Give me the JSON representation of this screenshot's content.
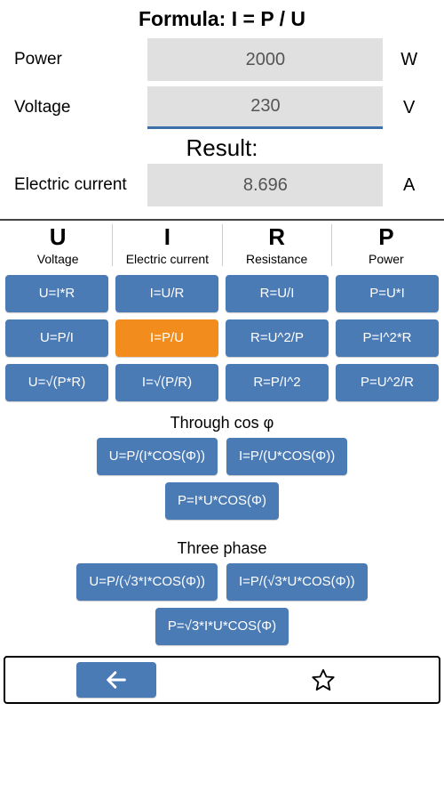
{
  "colors": {
    "button_bg": "#4b7bb5",
    "button_selected_bg": "#f28c1d",
    "button_fg": "#ffffff",
    "input_bg": "#e0e0e0",
    "input_fg": "#555555",
    "input_underline": "#3d6fa8",
    "divider": "#444444",
    "page_bg": "#ffffff",
    "text": "#000000"
  },
  "title": "Formula: I = P / U",
  "inputs": {
    "power": {
      "label": "Power",
      "value": "2000",
      "unit": "W"
    },
    "voltage": {
      "label": "Voltage",
      "value": "230",
      "unit": "V"
    }
  },
  "result_heading": "Result:",
  "result": {
    "label": "Electric current",
    "value": "8.696",
    "unit": "A"
  },
  "columns": [
    {
      "symbol": "U",
      "name": "Voltage"
    },
    {
      "symbol": "I",
      "name": "Electric current"
    },
    {
      "symbol": "R",
      "name": "Resistance"
    },
    {
      "symbol": "P",
      "name": "Power"
    }
  ],
  "grid": [
    [
      "U=I*R",
      "I=U/R",
      "R=U/I",
      "P=U*I"
    ],
    [
      "U=P/I",
      "I=P/U",
      "R=U^2/P",
      "P=I^2*R"
    ],
    [
      "U=√(P*R)",
      "I=√(P/R)",
      "R=P/I^2",
      "P=U^2/R"
    ]
  ],
  "grid_selected": {
    "row": 1,
    "col": 1
  },
  "sections": {
    "cosphi": {
      "label": "Through cos φ",
      "rows": [
        [
          "U=P/(I*COS(Φ))",
          "I=P/(U*COS(Φ))"
        ],
        [
          "P=I*U*COS(Φ)"
        ]
      ]
    },
    "three_phase": {
      "label": "Three phase",
      "rows": [
        [
          "U=P/(√3*I*COS(Φ))",
          "I=P/(√3*U*COS(Φ))"
        ],
        [
          "P=√3*I*U*COS(Φ)"
        ]
      ]
    }
  }
}
